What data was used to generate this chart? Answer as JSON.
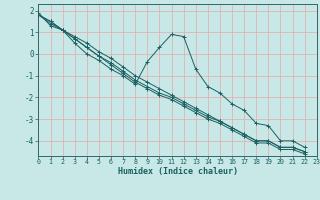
{
  "xlabel": "Humidex (Indice chaleur)",
  "bg_color": "#c8e8e8",
  "grid_color": "#e8a8a8",
  "line_color": "#1a6060",
  "spine_color": "#336666",
  "xlim": [
    0,
    23
  ],
  "ylim": [
    -4.7,
    2.3
  ],
  "xticks": [
    0,
    1,
    2,
    3,
    4,
    5,
    6,
    7,
    8,
    9,
    10,
    11,
    12,
    13,
    14,
    15,
    16,
    17,
    18,
    19,
    20,
    21,
    22,
    23
  ],
  "yticks": [
    -4,
    -3,
    -2,
    -1,
    0,
    1,
    2
  ],
  "series": [
    {
      "x": [
        0,
        1,
        2,
        3,
        4,
        5,
        6,
        7,
        8,
        9,
        10,
        11,
        12,
        13,
        14,
        15,
        16,
        17,
        18,
        19,
        20,
        21,
        22
      ],
      "y": [
        1.8,
        1.5,
        1.1,
        0.8,
        0.5,
        0.1,
        -0.2,
        -0.6,
        -1.0,
        -1.3,
        -1.6,
        -1.9,
        -2.2,
        -2.5,
        -2.8,
        -3.1,
        -3.4,
        -3.7,
        -4.0,
        -4.0,
        -4.3,
        -4.3,
        -4.5
      ]
    },
    {
      "x": [
        0,
        1,
        2,
        3,
        4,
        5,
        6,
        7,
        8,
        9,
        10,
        11,
        12,
        13,
        14,
        15,
        16,
        17,
        18,
        19,
        20,
        21,
        22
      ],
      "y": [
        1.8,
        1.4,
        1.1,
        0.7,
        0.3,
        -0.1,
        -0.5,
        -0.9,
        -1.3,
        -1.6,
        -1.9,
        -2.1,
        -2.4,
        -2.7,
        -3.0,
        -3.2,
        -3.5,
        -3.8,
        -4.1,
        -4.1,
        -4.4,
        -4.4,
        -4.6
      ]
    },
    {
      "x": [
        0,
        1,
        2,
        3,
        4,
        5,
        6,
        7,
        8,
        9,
        10,
        11,
        12,
        13,
        14,
        15,
        16,
        17,
        18,
        19,
        20,
        21,
        22
      ],
      "y": [
        1.9,
        1.3,
        1.1,
        0.5,
        0.0,
        -0.3,
        -0.7,
        -1.0,
        -1.4,
        -0.35,
        0.3,
        0.9,
        0.8,
        -0.7,
        -1.5,
        -1.8,
        -2.3,
        -2.6,
        -3.2,
        -3.3,
        -4.0,
        -4.0,
        -4.3
      ]
    },
    {
      "x": [
        0,
        1,
        2,
        3,
        4,
        5,
        6,
        7,
        8,
        9,
        10,
        11,
        12,
        13,
        14,
        15,
        16,
        17,
        18,
        19,
        20,
        21,
        22
      ],
      "y": [
        1.8,
        1.5,
        1.1,
        0.7,
        0.3,
        -0.1,
        -0.4,
        -0.8,
        -1.2,
        -1.5,
        -1.8,
        -2.0,
        -2.3,
        -2.6,
        -2.9,
        -3.1,
        -3.4,
        -3.7,
        -4.0,
        -4.0,
        -4.3,
        -4.3,
        -4.5
      ]
    }
  ],
  "xlabel_fontsize": 6.0,
  "tick_fontsize": 4.8,
  "ytick_fontsize": 5.5
}
